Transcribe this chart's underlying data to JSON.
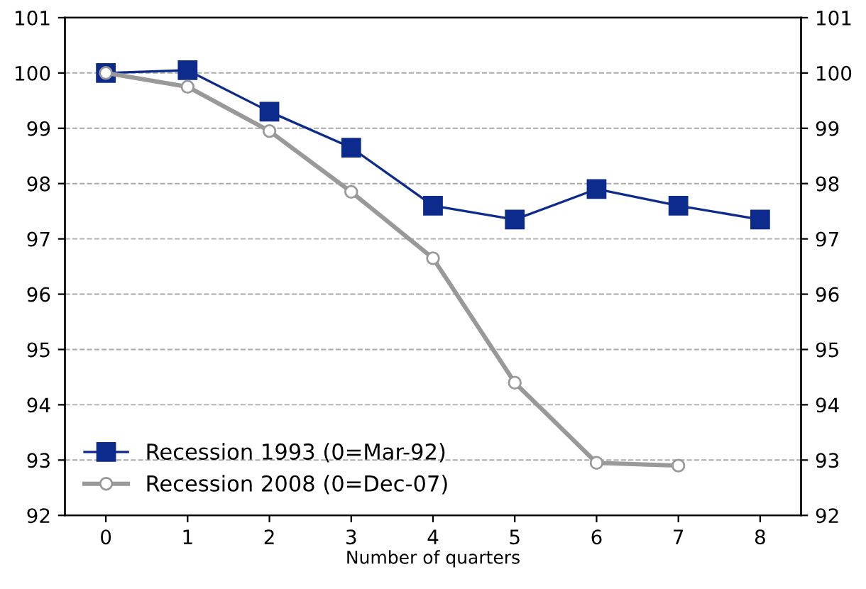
{
  "chart_data": {
    "type": "line",
    "xlabel": "Number of quarters",
    "categories": [
      "0",
      "1",
      "2",
      "3",
      "4",
      "5",
      "6",
      "7",
      "8"
    ],
    "series": [
      {
        "name": "Recession 1993 (0=Mar-92)",
        "color": "#0d2b8c",
        "marker": "square",
        "values": [
          100.0,
          100.05,
          99.3,
          98.65,
          97.6,
          97.35,
          97.9,
          97.6,
          97.35
        ]
      },
      {
        "name": "Recession 2008 (0=Dec-07)",
        "color": "#999999",
        "marker": "circle",
        "values": [
          100.0,
          99.75,
          98.95,
          97.85,
          96.65,
          94.4,
          92.95,
          92.9,
          null
        ]
      }
    ],
    "ylim": [
      92,
      101
    ],
    "yticks": [
      92,
      93,
      94,
      95,
      96,
      97,
      98,
      99,
      100,
      101
    ],
    "y2lim": [
      92,
      101
    ],
    "y2ticks": [
      92,
      93,
      94,
      95,
      96,
      97,
      98,
      99,
      100,
      101
    ],
    "grid": "y",
    "legend": "bottom left",
    "line_style": "solid"
  }
}
